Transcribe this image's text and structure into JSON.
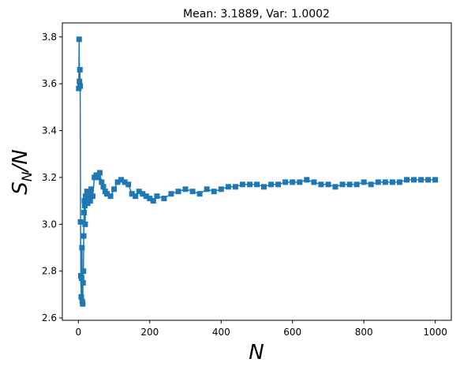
{
  "chart_data": {
    "type": "line",
    "title": "Mean: 3.1889, Var: 1.0002",
    "xlabel": "N",
    "ylabel_main": "S",
    "ylabel_sub": "N",
    "ylabel_tail": "/N",
    "xlim": [
      -45,
      1045
    ],
    "ylim": [
      2.59,
      3.86
    ],
    "xticks": [
      0,
      200,
      400,
      600,
      800,
      1000
    ],
    "xtick_labels": [
      "0",
      "200",
      "400",
      "600",
      "800",
      "1000"
    ],
    "yticks": [
      2.6,
      2.8,
      3.0,
      3.2,
      3.4,
      3.6,
      3.8
    ],
    "ytick_labels": [
      "2.6",
      "2.8",
      "3.0",
      "3.2",
      "3.4",
      "3.6",
      "3.8"
    ],
    "grid": false,
    "marker": "square",
    "color": "#1f77b4",
    "series": [
      {
        "x": [
          1,
          2,
          3,
          4,
          5,
          6,
          7,
          8,
          9,
          10,
          11,
          12,
          13,
          14,
          15,
          16,
          17,
          18,
          19,
          20,
          22,
          24,
          26,
          28,
          30,
          33,
          36,
          40,
          45,
          50,
          55,
          60,
          65,
          70,
          75,
          80,
          90,
          100,
          110,
          120,
          130,
          140,
          150,
          160,
          170,
          180,
          190,
          200,
          210,
          220,
          240,
          260,
          280,
          300,
          320,
          340,
          360,
          380,
          400,
          420,
          440,
          460,
          480,
          500,
          520,
          540,
          560,
          580,
          600,
          620,
          640,
          660,
          680,
          700,
          720,
          740,
          760,
          780,
          800,
          820,
          840,
          860,
          880,
          900,
          920,
          940,
          960,
          980,
          1000
        ],
        "y": [
          3.58,
          3.79,
          3.61,
          3.66,
          3.59,
          3.01,
          2.78,
          2.69,
          2.77,
          2.9,
          2.67,
          2.66,
          2.75,
          2.8,
          2.95,
          3.05,
          3.1,
          3.08,
          3.0,
          3.12,
          3.1,
          3.14,
          3.09,
          3.12,
          3.13,
          3.1,
          3.15,
          3.12,
          3.2,
          3.21,
          3.2,
          3.22,
          3.18,
          3.16,
          3.14,
          3.13,
          3.12,
          3.15,
          3.18,
          3.19,
          3.18,
          3.17,
          3.13,
          3.12,
          3.14,
          3.13,
          3.12,
          3.11,
          3.1,
          3.12,
          3.11,
          3.13,
          3.14,
          3.15,
          3.14,
          3.13,
          3.15,
          3.14,
          3.15,
          3.16,
          3.16,
          3.17,
          3.17,
          3.17,
          3.16,
          3.17,
          3.17,
          3.18,
          3.18,
          3.18,
          3.19,
          3.18,
          3.17,
          3.17,
          3.16,
          3.17,
          3.17,
          3.17,
          3.18,
          3.17,
          3.18,
          3.18,
          3.18,
          3.18,
          3.19,
          3.19,
          3.19,
          3.19,
          3.19
        ]
      }
    ]
  }
}
